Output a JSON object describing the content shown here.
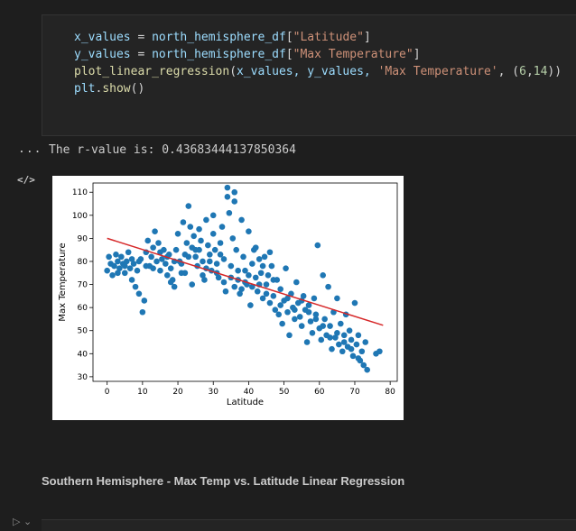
{
  "code_cell": {
    "lines": [
      [
        "x_values",
        " = ",
        "north_hemisphere_df",
        "[",
        "\"Latitude\"",
        "]"
      ],
      [
        "y_values",
        " = ",
        "north_hemisphere_df",
        "[",
        "\"Max Temperature\"",
        "]"
      ]
    ],
    "line3": {
      "fn": "plot_linear_regression",
      "open": "(",
      "args1": "x_values, y_values, ",
      "str": "'Max Temperature'",
      "comma": ", (",
      "n1": "6",
      "c2": ",",
      "n2": "14",
      "close": "))"
    },
    "line4": {
      "obj": "plt",
      "dot": ".",
      "fn": "show",
      "paren": "()"
    }
  },
  "output": {
    "ellipsis": "...",
    "rvalue_text": "The r-value is: 0.43683444137850364",
    "code_icon": "</>"
  },
  "markdown_heading": "Southern Hemisphere - Max Temp vs. Latitude Linear Regression",
  "bottom_icons": "▷ ⌄",
  "colors": {
    "points": "#1f77b4",
    "regression": "#d62728"
  },
  "chart_data": {
    "type": "scatter",
    "title": "",
    "xlabel": "Latitude",
    "ylabel": "Max Temperature",
    "xlim": [
      -4,
      82
    ],
    "ylim": [
      28,
      114
    ],
    "xticks": [
      0,
      10,
      20,
      30,
      40,
      50,
      60,
      70,
      80
    ],
    "yticks": [
      30,
      40,
      50,
      60,
      70,
      80,
      90,
      100,
      110
    ],
    "grid": false,
    "regression_line": {
      "x": [
        0,
        78
      ],
      "y": [
        90,
        52.3
      ]
    },
    "points": [
      [
        0,
        76
      ],
      [
        0.5,
        82
      ],
      [
        1,
        79
      ],
      [
        1.5,
        74
      ],
      [
        2,
        78
      ],
      [
        2.5,
        83
      ],
      [
        3,
        80
      ],
      [
        3.5,
        77
      ],
      [
        4,
        82
      ],
      [
        4.5,
        79
      ],
      [
        5,
        75
      ],
      [
        5.5,
        80
      ],
      [
        6,
        84
      ],
      [
        6.5,
        77
      ],
      [
        7,
        72
      ],
      [
        7.5,
        79
      ],
      [
        8,
        69
      ],
      [
        8.5,
        76
      ],
      [
        9,
        66
      ],
      [
        9.5,
        81
      ],
      [
        10,
        58
      ],
      [
        10.5,
        63
      ],
      [
        11,
        84
      ],
      [
        11.5,
        89
      ],
      [
        12,
        78
      ],
      [
        12.5,
        82
      ],
      [
        13,
        86
      ],
      [
        13.5,
        93
      ],
      [
        14,
        80
      ],
      [
        14.5,
        88
      ],
      [
        15,
        76
      ],
      [
        15.5,
        81
      ],
      [
        16,
        85
      ],
      [
        16.5,
        79
      ],
      [
        17,
        74
      ],
      [
        17.5,
        83
      ],
      [
        18,
        77
      ],
      [
        18.5,
        72
      ],
      [
        19,
        69
      ],
      [
        19.5,
        85
      ],
      [
        20,
        92
      ],
      [
        20.5,
        80
      ],
      [
        21,
        75
      ],
      [
        21.5,
        97
      ],
      [
        22,
        83
      ],
      [
        22.5,
        88
      ],
      [
        23,
        104
      ],
      [
        23.5,
        95
      ],
      [
        24,
        86
      ],
      [
        24.5,
        91
      ],
      [
        25,
        82
      ],
      [
        25.5,
        78
      ],
      [
        26,
        94
      ],
      [
        26.5,
        89
      ],
      [
        27,
        80
      ],
      [
        27.5,
        72
      ],
      [
        28,
        98
      ],
      [
        28.5,
        87
      ],
      [
        29,
        83
      ],
      [
        29.5,
        76
      ],
      [
        30,
        92
      ],
      [
        30.5,
        85
      ],
      [
        31,
        79
      ],
      [
        31.5,
        73
      ],
      [
        32,
        88
      ],
      [
        32.5,
        95
      ],
      [
        33,
        81
      ],
      [
        33.5,
        67
      ],
      [
        34,
        112
      ],
      [
        34.5,
        101
      ],
      [
        35,
        78
      ],
      [
        35.5,
        90
      ],
      [
        36,
        106
      ],
      [
        36.5,
        85
      ],
      [
        37,
        72
      ],
      [
        37.5,
        66
      ],
      [
        38,
        98
      ],
      [
        38.5,
        82
      ],
      [
        39,
        76
      ],
      [
        39.5,
        70
      ],
      [
        40,
        93
      ],
      [
        40.5,
        61
      ],
      [
        41,
        79
      ],
      [
        41.5,
        85
      ],
      [
        42,
        73
      ],
      [
        42.5,
        67
      ],
      [
        43,
        81
      ],
      [
        43.5,
        75
      ],
      [
        44,
        64
      ],
      [
        44.5,
        82
      ],
      [
        45,
        70
      ],
      [
        45.5,
        74
      ],
      [
        46,
        62
      ],
      [
        46.5,
        78
      ],
      [
        47,
        65
      ],
      [
        47.5,
        59
      ],
      [
        48,
        72
      ],
      [
        48.5,
        57
      ],
      [
        49,
        68
      ],
      [
        49.5,
        53
      ],
      [
        50,
        63
      ],
      [
        50.5,
        77
      ],
      [
        51,
        58
      ],
      [
        51.5,
        48
      ],
      [
        52,
        66
      ],
      [
        52.5,
        60
      ],
      [
        53,
        55
      ],
      [
        53.5,
        71
      ],
      [
        54,
        62
      ],
      [
        54.5,
        56
      ],
      [
        55,
        52
      ],
      [
        55.5,
        65
      ],
      [
        56,
        59
      ],
      [
        56.5,
        45
      ],
      [
        57,
        61
      ],
      [
        57.5,
        54
      ],
      [
        58,
        49
      ],
      [
        58.5,
        64
      ],
      [
        59,
        57
      ],
      [
        59.5,
        87
      ],
      [
        60,
        51
      ],
      [
        60.5,
        46
      ],
      [
        61,
        74
      ],
      [
        61.5,
        55
      ],
      [
        62,
        48
      ],
      [
        62.5,
        69
      ],
      [
        63,
        52
      ],
      [
        63.5,
        42
      ],
      [
        64,
        58
      ],
      [
        64.5,
        47
      ],
      [
        65,
        64
      ],
      [
        65.5,
        44
      ],
      [
        66,
        53
      ],
      [
        66.5,
        41
      ],
      [
        67,
        48
      ],
      [
        67.5,
        57
      ],
      [
        68,
        43
      ],
      [
        68.5,
        50
      ],
      [
        69,
        46
      ],
      [
        69.5,
        39
      ],
      [
        70,
        62
      ],
      [
        70.5,
        44
      ],
      [
        71,
        48
      ],
      [
        71.5,
        37
      ],
      [
        72,
        41
      ],
      [
        72.5,
        35
      ],
      [
        73,
        45
      ],
      [
        73.5,
        33
      ],
      [
        76,
        40
      ],
      [
        77,
        41
      ],
      [
        3,
        75
      ],
      [
        5,
        78
      ],
      [
        7,
        81
      ],
      [
        9,
        80
      ],
      [
        11,
        78
      ],
      [
        13,
        77
      ],
      [
        15,
        84
      ],
      [
        17,
        82
      ],
      [
        19,
        80
      ],
      [
        21,
        79
      ],
      [
        23,
        82
      ],
      [
        25,
        85
      ],
      [
        27,
        74
      ],
      [
        29,
        80
      ],
      [
        31,
        75
      ],
      [
        33,
        71
      ],
      [
        35,
        73
      ],
      [
        37,
        76
      ],
      [
        39,
        71
      ],
      [
        41,
        69
      ],
      [
        43,
        70
      ],
      [
        45,
        66
      ],
      [
        47,
        72
      ],
      [
        49,
        61
      ],
      [
        51,
        64
      ],
      [
        53,
        59
      ],
      [
        55,
        63
      ],
      [
        57,
        58
      ],
      [
        59,
        55
      ],
      [
        61,
        52
      ],
      [
        63,
        47
      ],
      [
        65,
        49
      ],
      [
        67,
        45
      ],
      [
        69,
        42
      ],
      [
        71,
        38
      ],
      [
        24,
        70
      ],
      [
        28,
        77
      ],
      [
        32,
        83
      ],
      [
        36,
        69
      ],
      [
        44,
        78
      ],
      [
        42,
        86
      ],
      [
        46,
        84
      ],
      [
        40,
        74
      ],
      [
        38,
        68
      ],
      [
        30,
        100
      ],
      [
        34,
        108
      ],
      [
        36,
        110
      ],
      [
        26,
        85
      ],
      [
        22,
        75
      ],
      [
        18,
        71
      ]
    ]
  }
}
